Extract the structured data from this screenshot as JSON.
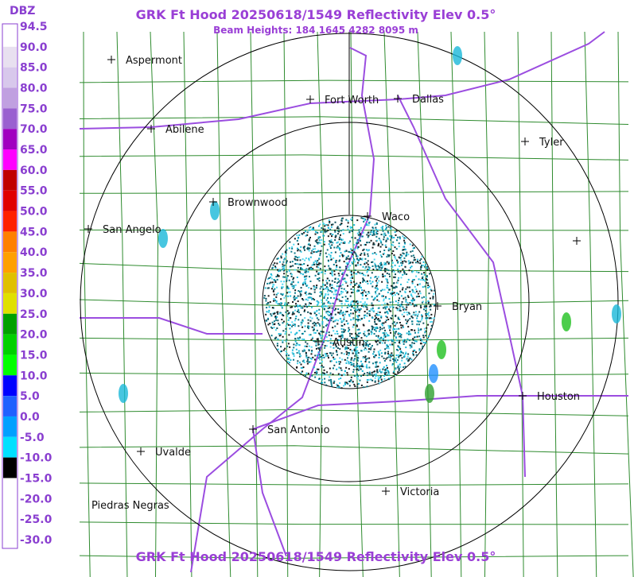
{
  "header": {
    "title": "GRK Ft Hood 20250618/1549 Reflectivity Elev 0.5°",
    "beam_heights": "Beam Heights: 184 1645 4282 8095 m",
    "footer_title": "GRK Ft Hood 20250618/1549 Reflectivity Elev 0.5°"
  },
  "legend": {
    "unit": "DBZ",
    "labels": [
      "94.5",
      "90.0",
      "85.0",
      "80.0",
      "75.0",
      "70.0",
      "65.0",
      "60.0",
      "55.0",
      "50.0",
      "45.0",
      "40.0",
      "35.0",
      "30.0",
      "25.0",
      "20.0",
      "15.0",
      "10.0",
      "5.0",
      "0.0",
      "-5.0",
      "-10.0",
      "-15.0",
      "-20.0",
      "-25.0",
      "-30.0"
    ]
  },
  "cities": [
    {
      "name": "Aspermont"
    },
    {
      "name": "Fort Worth"
    },
    {
      "name": "Dallas"
    },
    {
      "name": "Abilene"
    },
    {
      "name": "Tyler"
    },
    {
      "name": "Brownwood"
    },
    {
      "name": "Waco"
    },
    {
      "name": "San Angelo"
    },
    {
      "name": "Bryan"
    },
    {
      "name": "Austin"
    },
    {
      "name": "Houston"
    },
    {
      "name": "San Antonio"
    },
    {
      "name": "Uvalde"
    },
    {
      "name": "Victoria"
    },
    {
      "name": "Piedras Negras"
    }
  ]
}
